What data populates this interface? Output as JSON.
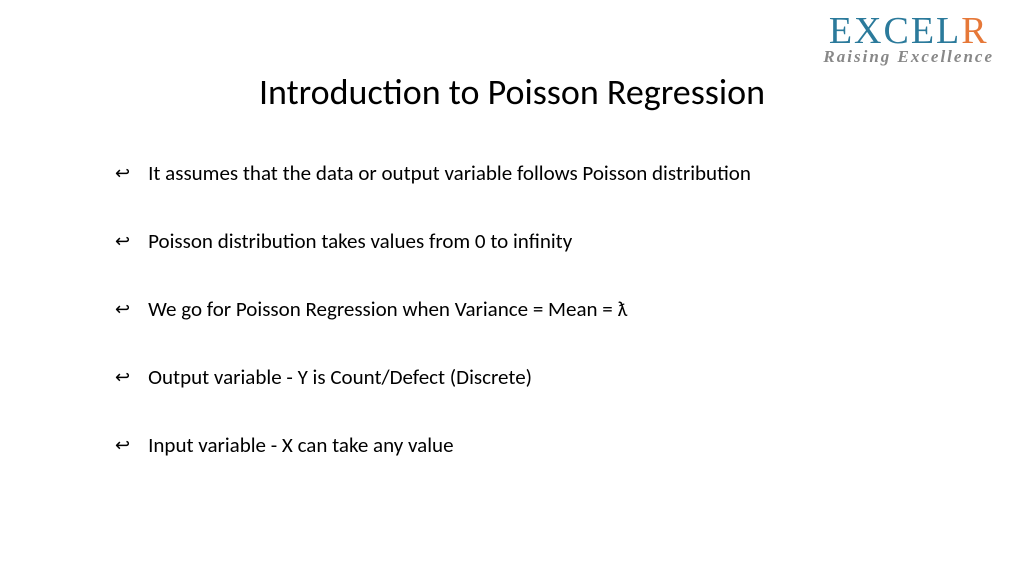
{
  "logo": {
    "brand_part1": "EXCEL",
    "brand_part2": "R",
    "brand_color1": "#2b7a9b",
    "brand_color2": "#e67838",
    "tagline": "Raising Excellence",
    "tagline_color": "#888888"
  },
  "title": "Introduction to Poisson Regression",
  "title_fontsize": 36,
  "title_color": "#000000",
  "bullets": {
    "marker": "↩",
    "items": [
      "It assumes that the data or output variable follows Poisson distribution",
      "Poisson distribution takes values from 0 to infinity",
      "We go for Poisson Regression when Variance = Mean = ƛ",
      "Output variable - Y is Count/Defect (Discrete)",
      "Input variable - X can take any value"
    ],
    "fontsize": 21,
    "text_color": "#000000"
  },
  "background_color": "#ffffff"
}
